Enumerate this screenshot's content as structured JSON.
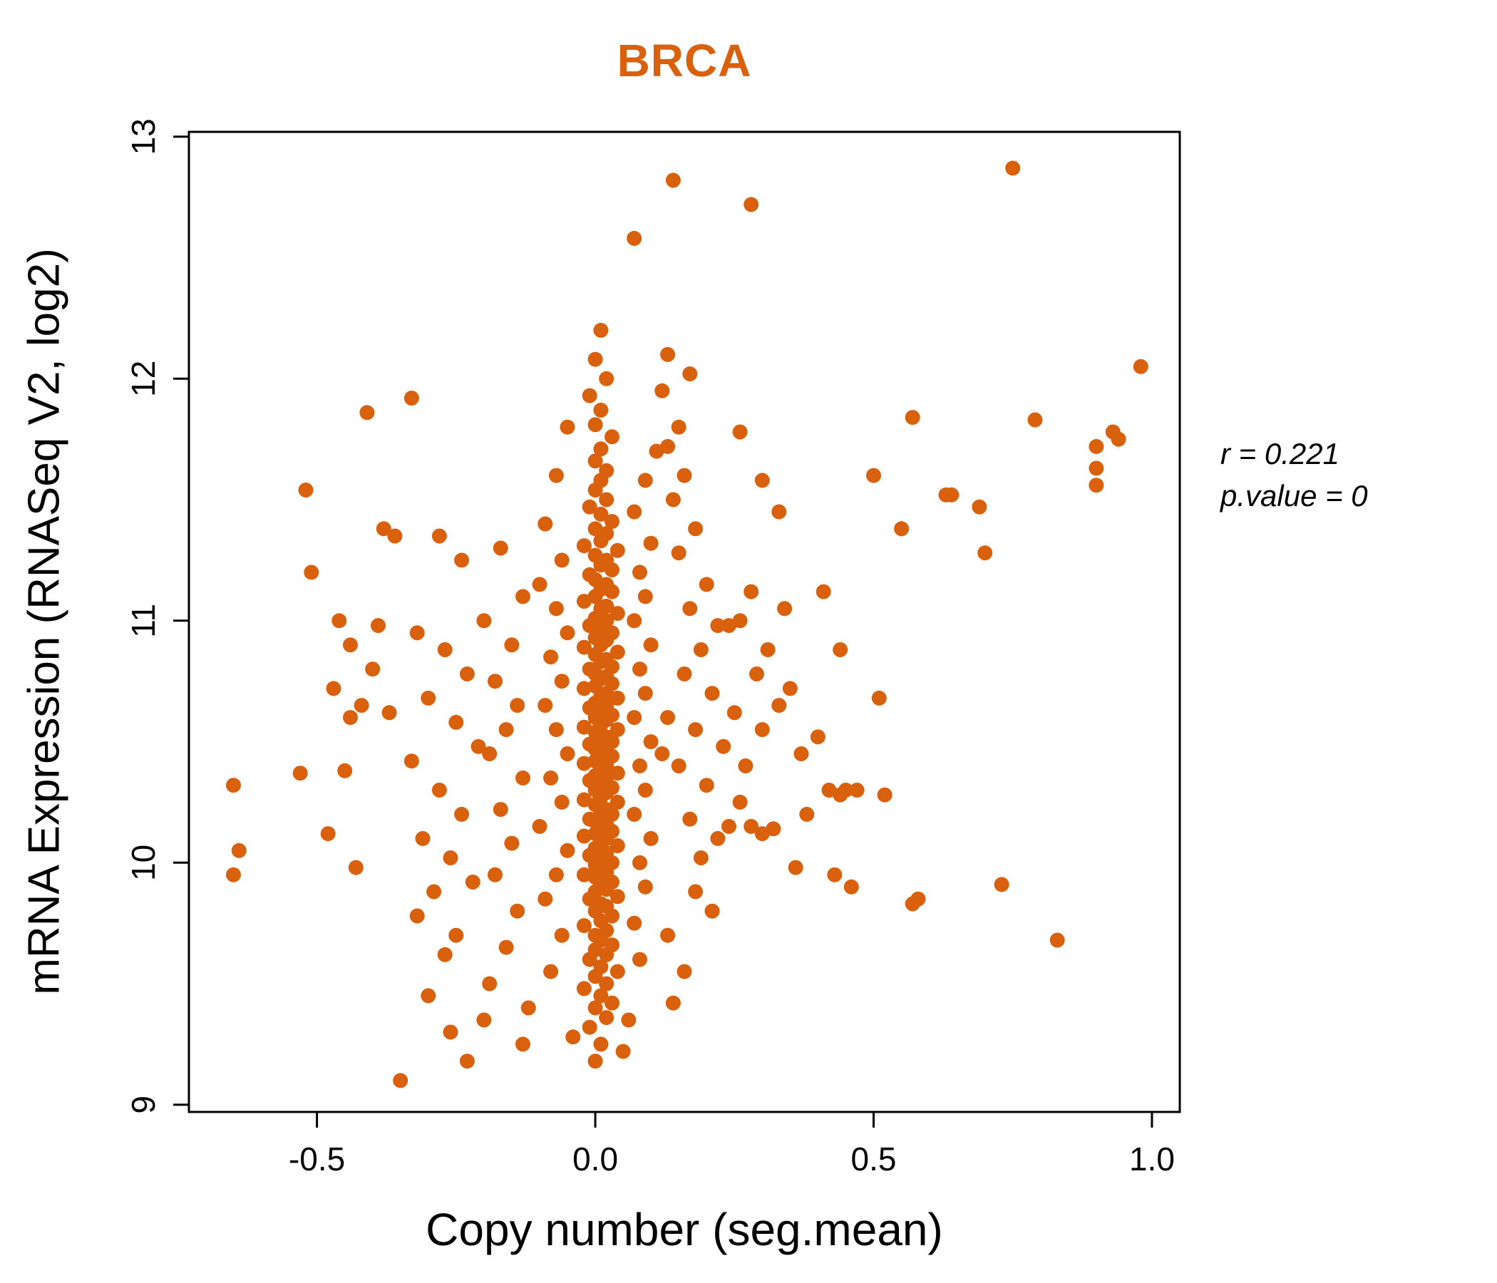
{
  "chart_data": {
    "type": "scatter",
    "title": "BRCA",
    "title_color": "#D9600C",
    "point_color": "#D9600C",
    "xlabel": "Copy number (seg.mean)",
    "ylabel": "mRNA Expression (RNASeq V2, log2)",
    "annotation_lines": [
      "r = 0.221",
      "p.value = 0"
    ],
    "xlim": [
      -0.73,
      1.05
    ],
    "ylim": [
      8.97,
      13.02
    ],
    "x_ticks": [
      -0.5,
      0.0,
      0.5,
      1.0
    ],
    "x_tick_labels": [
      "-0.5",
      "0.0",
      "0.5",
      "1.0"
    ],
    "y_ticks": [
      9,
      10,
      11,
      12,
      13
    ],
    "y_tick_labels": [
      "9",
      "10",
      "11",
      "12",
      "13"
    ],
    "grid": false,
    "legend": "none",
    "points": [
      [
        0,
        9.18
      ],
      [
        0.01,
        9.25
      ],
      [
        -0.01,
        9.32
      ],
      [
        0.02,
        9.36
      ],
      [
        0,
        9.4
      ],
      [
        0.03,
        9.42
      ],
      [
        0.01,
        9.45
      ],
      [
        -0.02,
        9.48
      ],
      [
        0.02,
        9.5
      ],
      [
        0,
        9.53
      ],
      [
        0.04,
        9.55
      ],
      [
        0.01,
        9.57
      ],
      [
        -0.01,
        9.6
      ],
      [
        0.02,
        9.62
      ],
      [
        0,
        9.64
      ],
      [
        0.03,
        9.66
      ],
      [
        0.01,
        9.68
      ],
      [
        0,
        9.7
      ],
      [
        0.02,
        9.72
      ],
      [
        -0.02,
        9.74
      ],
      [
        0.01,
        9.76
      ],
      [
        0.03,
        9.78
      ],
      [
        0,
        9.8
      ],
      [
        0.02,
        9.82
      ],
      [
        0.01,
        9.83
      ],
      [
        -0.01,
        9.85
      ],
      [
        0.04,
        9.86
      ],
      [
        0,
        9.88
      ],
      [
        0.02,
        9.89
      ],
      [
        0.01,
        9.91
      ],
      [
        0.03,
        9.92
      ],
      [
        0,
        9.94
      ],
      [
        -0.02,
        9.95
      ],
      [
        0.02,
        9.96
      ],
      [
        0.01,
        9.98
      ],
      [
        0,
        9.99
      ],
      [
        0.03,
        10
      ],
      [
        0.01,
        10.02
      ],
      [
        -0.01,
        10.03
      ],
      [
        0.02,
        10.04
      ],
      [
        0,
        10.06
      ],
      [
        0.04,
        10.07
      ],
      [
        0.01,
        10.08
      ],
      [
        0.02,
        10.1
      ],
      [
        -0.02,
        10.11
      ],
      [
        0,
        10.12
      ],
      [
        0.03,
        10.13
      ],
      [
        0.01,
        10.15
      ],
      [
        0.02,
        10.16
      ],
      [
        0,
        10.17
      ],
      [
        -0.01,
        10.18
      ],
      [
        0.03,
        10.2
      ],
      [
        0.01,
        10.21
      ],
      [
        0.02,
        10.22
      ],
      [
        0,
        10.24
      ],
      [
        0.04,
        10.25
      ],
      [
        -0.02,
        10.26
      ],
      [
        0.01,
        10.27
      ],
      [
        0.02,
        10.29
      ],
      [
        0,
        10.3
      ],
      [
        0.03,
        10.31
      ],
      [
        0.01,
        10.32
      ],
      [
        -0.01,
        10.34
      ],
      [
        0.02,
        10.35
      ],
      [
        0,
        10.36
      ],
      [
        0.04,
        10.37
      ],
      [
        0.01,
        10.39
      ],
      [
        0.02,
        10.4
      ],
      [
        -0.02,
        10.41
      ],
      [
        0,
        10.42
      ],
      [
        0.03,
        10.44
      ],
      [
        0.01,
        10.45
      ],
      [
        0.02,
        10.46
      ],
      [
        0,
        10.47
      ],
      [
        -0.01,
        10.49
      ],
      [
        0.03,
        10.5
      ],
      [
        0.01,
        10.51
      ],
      [
        0.02,
        10.52
      ],
      [
        0,
        10.54
      ],
      [
        0.04,
        10.55
      ],
      [
        -0.02,
        10.56
      ],
      [
        0.01,
        10.57
      ],
      [
        0.02,
        10.59
      ],
      [
        0,
        10.6
      ],
      [
        0.03,
        10.61
      ],
      [
        0.01,
        10.62
      ],
      [
        -0.01,
        10.64
      ],
      [
        0.02,
        10.65
      ],
      [
        0,
        10.66
      ],
      [
        0.04,
        10.68
      ],
      [
        0.01,
        10.69
      ],
      [
        0.02,
        10.7
      ],
      [
        -0.02,
        10.72
      ],
      [
        0,
        10.73
      ],
      [
        0.03,
        10.74
      ],
      [
        0.01,
        10.76
      ],
      [
        0.02,
        10.77
      ],
      [
        0,
        10.78
      ],
      [
        -0.01,
        10.8
      ],
      [
        0.03,
        10.81
      ],
      [
        0.01,
        10.83
      ],
      [
        0.02,
        10.84
      ],
      [
        0,
        10.86
      ],
      [
        0.04,
        10.87
      ],
      [
        -0.02,
        10.89
      ],
      [
        0.01,
        10.9
      ],
      [
        0.02,
        10.92
      ],
      [
        0,
        10.93
      ],
      [
        0.03,
        10.95
      ],
      [
        0.01,
        10.96
      ],
      [
        -0.01,
        10.98
      ],
      [
        0.02,
        11
      ],
      [
        0,
        11.01
      ],
      [
        0.04,
        11.03
      ],
      [
        0.01,
        11.05
      ],
      [
        0.02,
        11.06
      ],
      [
        -0.02,
        11.08
      ],
      [
        0,
        11.1
      ],
      [
        0.03,
        11.12
      ],
      [
        0.01,
        11.13
      ],
      [
        0.02,
        11.15
      ],
      [
        0,
        11.17
      ],
      [
        -0.01,
        11.19
      ],
      [
        0.03,
        11.21
      ],
      [
        0.01,
        11.23
      ],
      [
        0.02,
        11.25
      ],
      [
        0,
        11.27
      ],
      [
        0.04,
        11.29
      ],
      [
        -0.02,
        11.31
      ],
      [
        0.01,
        11.33
      ],
      [
        0.02,
        11.36
      ],
      [
        0,
        11.38
      ],
      [
        0.03,
        11.41
      ],
      [
        0.01,
        11.44
      ],
      [
        -0.01,
        11.47
      ],
      [
        0.02,
        11.5
      ],
      [
        0,
        11.54
      ],
      [
        0.01,
        11.58
      ],
      [
        0.02,
        11.62
      ],
      [
        0,
        11.66
      ],
      [
        0.01,
        11.71
      ],
      [
        0.03,
        11.76
      ],
      [
        0,
        11.81
      ],
      [
        0.01,
        11.87
      ],
      [
        -0.01,
        11.93
      ],
      [
        0.02,
        12
      ],
      [
        0,
        12.08
      ],
      [
        0.01,
        12.2
      ],
      [
        -0.08,
        9.55
      ],
      [
        -0.06,
        9.7
      ],
      [
        -0.09,
        9.85
      ],
      [
        -0.07,
        9.95
      ],
      [
        -0.05,
        10.05
      ],
      [
        -0.1,
        10.15
      ],
      [
        -0.06,
        10.25
      ],
      [
        -0.08,
        10.35
      ],
      [
        -0.05,
        10.45
      ],
      [
        -0.07,
        10.55
      ],
      [
        -0.09,
        10.65
      ],
      [
        -0.06,
        10.75
      ],
      [
        -0.08,
        10.85
      ],
      [
        -0.05,
        10.95
      ],
      [
        -0.07,
        11.05
      ],
      [
        -0.1,
        11.15
      ],
      [
        -0.06,
        11.25
      ],
      [
        -0.09,
        11.4
      ],
      [
        -0.07,
        11.6
      ],
      [
        -0.05,
        11.8
      ],
      [
        0.08,
        9.6
      ],
      [
        0.07,
        9.75
      ],
      [
        0.09,
        9.9
      ],
      [
        0.08,
        10
      ],
      [
        0.1,
        10.1
      ],
      [
        0.07,
        10.2
      ],
      [
        0.09,
        10.3
      ],
      [
        0.08,
        10.4
      ],
      [
        0.1,
        10.5
      ],
      [
        0.07,
        10.6
      ],
      [
        0.09,
        10.7
      ],
      [
        0.08,
        10.8
      ],
      [
        0.1,
        10.9
      ],
      [
        0.07,
        11
      ],
      [
        0.09,
        11.1
      ],
      [
        0.08,
        11.2
      ],
      [
        0.1,
        11.32
      ],
      [
        0.07,
        11.45
      ],
      [
        0.09,
        11.58
      ],
      [
        0.11,
        11.7
      ],
      [
        0.12,
        11.95
      ],
      [
        -0.12,
        9.4
      ],
      [
        0.06,
        9.35
      ],
      [
        0.05,
        9.22
      ],
      [
        -0.04,
        9.28
      ],
      [
        0.14,
        12.82
      ],
      [
        0.28,
        12.72
      ],
      [
        0.07,
        12.58
      ],
      [
        0.13,
        12.1
      ],
      [
        0.17,
        12.02
      ],
      [
        0.15,
        11.8
      ],
      [
        0.13,
        11.72
      ],
      [
        0.16,
        11.6
      ],
      [
        0.14,
        11.5
      ],
      [
        0.18,
        11.38
      ],
      [
        0.15,
        11.28
      ],
      [
        0.2,
        11.15
      ],
      [
        0.17,
        11.05
      ],
      [
        0.22,
        10.98
      ],
      [
        0.24,
        10.98
      ],
      [
        0.19,
        10.88
      ],
      [
        0.16,
        10.78
      ],
      [
        0.21,
        10.7
      ],
      [
        0.25,
        10.62
      ],
      [
        0.18,
        10.55
      ],
      [
        0.23,
        10.48
      ],
      [
        0.15,
        10.4
      ],
      [
        0.2,
        10.32
      ],
      [
        0.26,
        10.25
      ],
      [
        0.17,
        10.18
      ],
      [
        0.22,
        10.1
      ],
      [
        0.19,
        10.02
      ],
      [
        0.24,
        10.15
      ],
      [
        0.28,
        10.15
      ],
      [
        0.3,
        10.12
      ],
      [
        0.32,
        10.14
      ],
      [
        0.27,
        10.4
      ],
      [
        0.3,
        10.55
      ],
      [
        0.33,
        10.65
      ],
      [
        0.29,
        10.78
      ],
      [
        0.35,
        10.72
      ],
      [
        0.31,
        10.88
      ],
      [
        0.26,
        11
      ],
      [
        0.34,
        11.05
      ],
      [
        0.28,
        11.12
      ],
      [
        0.37,
        10.45
      ],
      [
        0.4,
        10.52
      ],
      [
        0.42,
        10.3
      ],
      [
        0.38,
        10.2
      ],
      [
        0.36,
        9.98
      ],
      [
        0.33,
        11.45
      ],
      [
        0.3,
        11.58
      ],
      [
        0.26,
        11.78
      ],
      [
        0.41,
        11.12
      ],
      [
        0.44,
        10.88
      ],
      [
        0.43,
        9.95
      ],
      [
        0.46,
        9.9
      ],
      [
        0.45,
        10.3
      ],
      [
        0.13,
        9.7
      ],
      [
        0.16,
        9.55
      ],
      [
        0.14,
        9.42
      ],
      [
        0.18,
        9.88
      ],
      [
        0.21,
        9.8
      ],
      [
        0.13,
        10.6
      ],
      [
        0.12,
        10.45
      ],
      [
        -0.35,
        9.1
      ],
      [
        -0.3,
        9.45
      ],
      [
        -0.27,
        9.62
      ],
      [
        -0.32,
        9.78
      ],
      [
        -0.25,
        9.7
      ],
      [
        -0.29,
        9.88
      ],
      [
        -0.22,
        9.92
      ],
      [
        -0.26,
        10.02
      ],
      [
        -0.31,
        10.1
      ],
      [
        -0.24,
        10.2
      ],
      [
        -0.28,
        10.3
      ],
      [
        -0.33,
        10.42
      ],
      [
        -0.21,
        10.48
      ],
      [
        -0.25,
        10.58
      ],
      [
        -0.3,
        10.68
      ],
      [
        -0.23,
        10.78
      ],
      [
        -0.27,
        10.88
      ],
      [
        -0.32,
        10.95
      ],
      [
        -0.2,
        11
      ],
      [
        -0.24,
        11.25
      ],
      [
        -0.28,
        11.35
      ],
      [
        -0.33,
        11.92
      ],
      [
        -0.26,
        9.3
      ],
      [
        -0.19,
        9.5
      ],
      [
        -0.16,
        9.65
      ],
      [
        -0.14,
        9.8
      ],
      [
        -0.18,
        9.95
      ],
      [
        -0.15,
        10.08
      ],
      [
        -0.17,
        10.22
      ],
      [
        -0.13,
        10.35
      ],
      [
        -0.19,
        10.45
      ],
      [
        -0.16,
        10.55
      ],
      [
        -0.14,
        10.65
      ],
      [
        -0.18,
        10.75
      ],
      [
        -0.15,
        10.9
      ],
      [
        -0.13,
        11.1
      ],
      [
        -0.17,
        11.3
      ],
      [
        -0.13,
        9.25
      ],
      [
        -0.2,
        9.35
      ],
      [
        -0.23,
        9.18
      ],
      [
        -0.65,
        10.32
      ],
      [
        -0.64,
        10.05
      ],
      [
        -0.65,
        9.95
      ],
      [
        -0.53,
        10.37
      ],
      [
        -0.52,
        11.54
      ],
      [
        -0.51,
        11.2
      ],
      [
        -0.46,
        11
      ],
      [
        -0.44,
        10.9
      ],
      [
        -0.47,
        10.72
      ],
      [
        -0.42,
        10.65
      ],
      [
        -0.45,
        10.38
      ],
      [
        -0.48,
        10.12
      ],
      [
        -0.43,
        9.98
      ],
      [
        -0.4,
        10.8
      ],
      [
        -0.41,
        11.86
      ],
      [
        -0.38,
        11.38
      ],
      [
        -0.36,
        11.35
      ],
      [
        -0.39,
        10.98
      ],
      [
        -0.37,
        10.62
      ],
      [
        -0.44,
        10.6
      ],
      [
        0.5,
        11.6
      ],
      [
        0.51,
        10.68
      ],
      [
        0.52,
        10.28
      ],
      [
        0.57,
        11.84
      ],
      [
        0.57,
        9.83
      ],
      [
        0.55,
        11.38
      ],
      [
        0.63,
        11.52
      ],
      [
        0.64,
        11.52
      ],
      [
        0.69,
        11.47
      ],
      [
        0.7,
        11.28
      ],
      [
        0.73,
        9.91
      ],
      [
        0.75,
        12.87
      ],
      [
        0.79,
        11.83
      ],
      [
        0.83,
        9.68
      ],
      [
        0.9,
        11.72
      ],
      [
        0.9,
        11.63
      ],
      [
        0.9,
        11.56
      ],
      [
        0.93,
        11.78
      ],
      [
        0.94,
        11.75
      ],
      [
        0.98,
        12.05
      ],
      [
        0.58,
        9.85
      ],
      [
        0.44,
        10.28
      ],
      [
        0.47,
        10.3
      ]
    ]
  }
}
